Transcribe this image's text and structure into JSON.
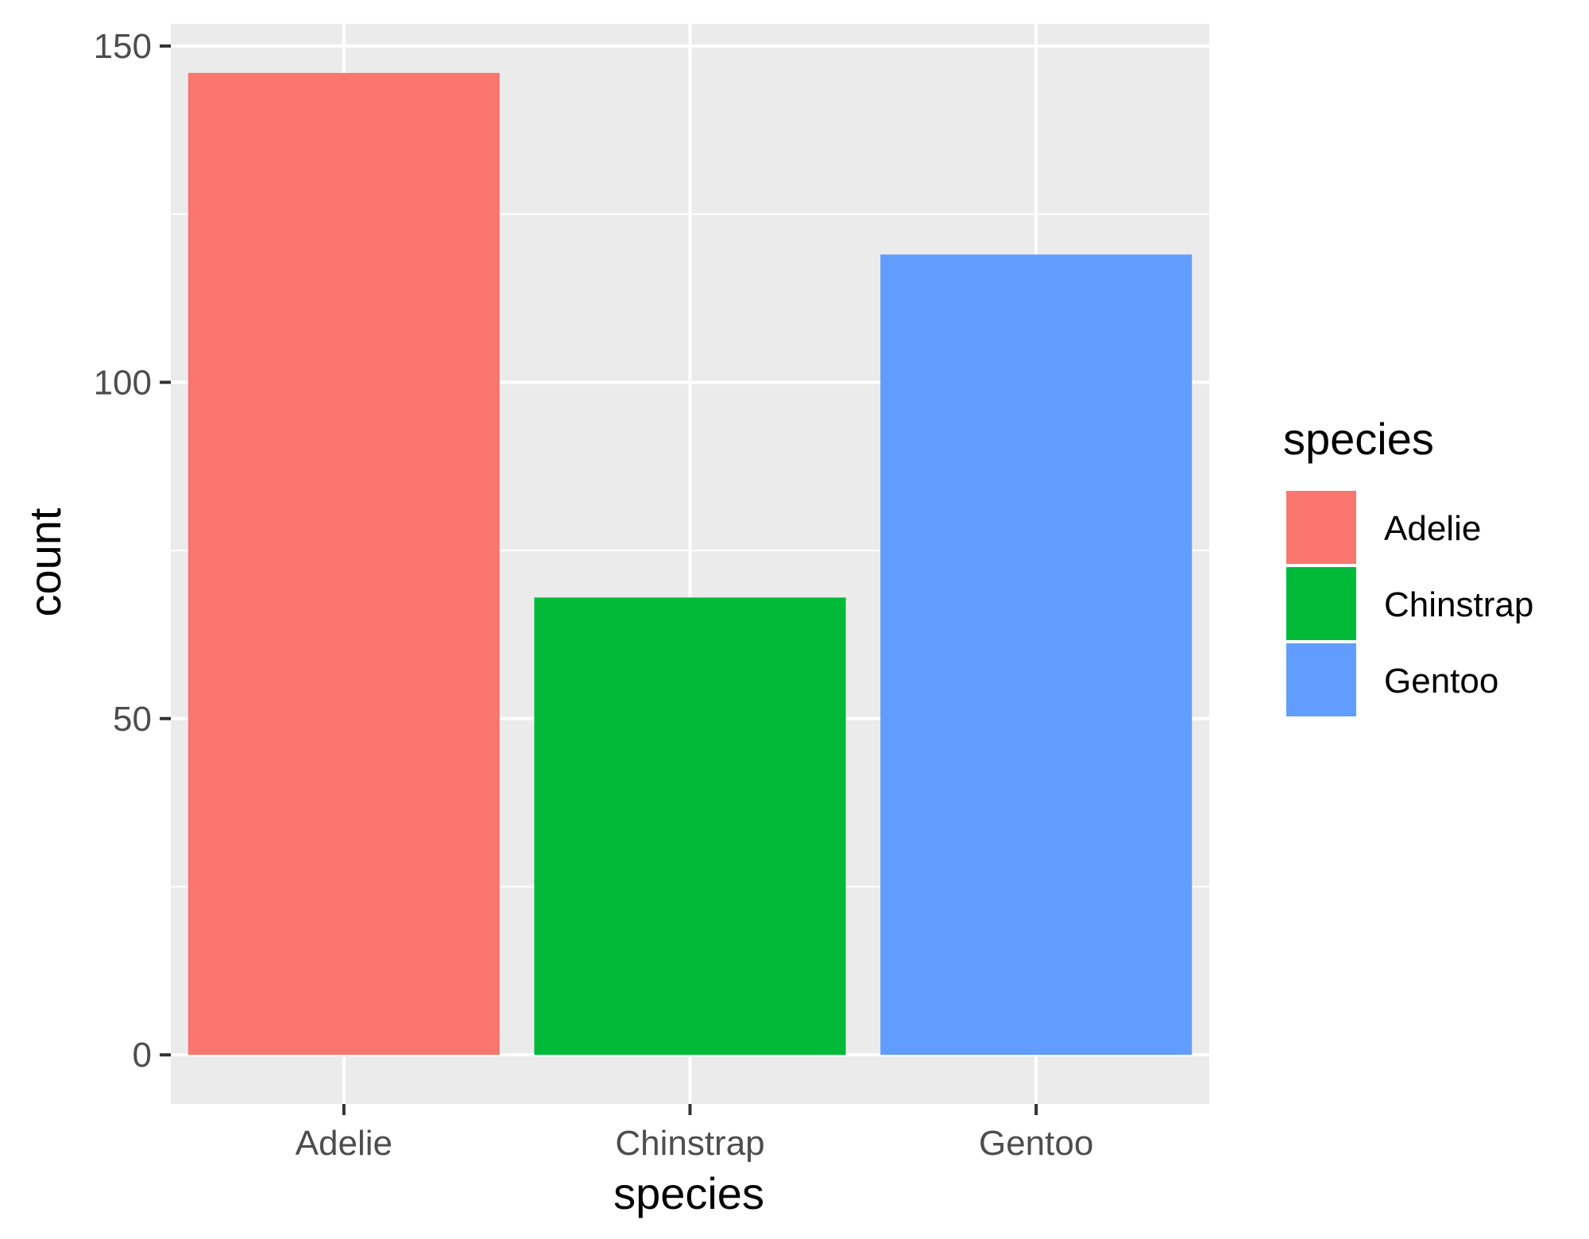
{
  "chart_data": {
    "type": "bar",
    "categories": [
      "Adelie",
      "Chinstrap",
      "Gentoo"
    ],
    "values": [
      146,
      68,
      119
    ],
    "colors": [
      "#F8766D",
      "#00BA38",
      "#619CFF"
    ],
    "xlabel": "species",
    "ylabel": "count",
    "ylim": [
      -7.3,
      153.3
    ],
    "yticks": [
      0,
      50,
      100,
      150
    ],
    "y_minor_gridlines": [
      25,
      75,
      125
    ],
    "grid": true,
    "panel_background": "#EBEBEB",
    "gridline_color": "#FFFFFF",
    "legend": {
      "title": "species",
      "placement": "right",
      "items": [
        {
          "label": "Adelie",
          "color": "#F8766D"
        },
        {
          "label": "Chinstrap",
          "color": "#00BA38"
        },
        {
          "label": "Gentoo",
          "color": "#619CFF"
        }
      ]
    }
  }
}
